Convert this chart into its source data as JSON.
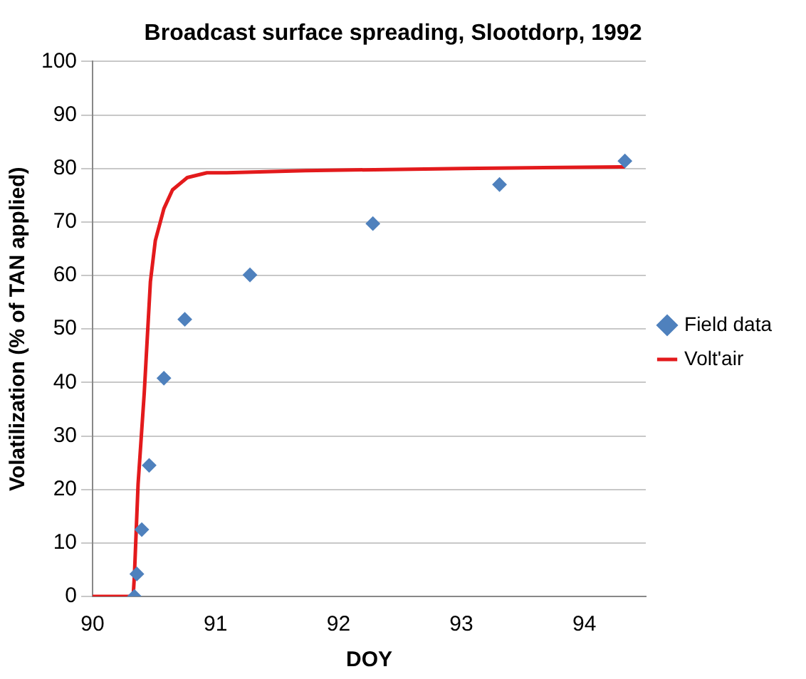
{
  "chart_data": {
    "type": "scatter",
    "title": "Broadcast surface spreading, Slootdorp, 1992",
    "xlabel": "DOY",
    "ylabel": "Volatilization (% of TAN applied)",
    "xlim": [
      90,
      94.5
    ],
    "xticks": [
      90,
      91,
      92,
      93,
      94
    ],
    "ylim": [
      0,
      100
    ],
    "yticks": [
      0,
      10,
      20,
      30,
      40,
      50,
      60,
      70,
      80,
      90,
      100
    ],
    "grid": "y",
    "legend": "right",
    "series": [
      {
        "name": "Field data",
        "marker": "diamond",
        "color": "#4f81bd",
        "x": [
          90.34,
          90.36,
          90.4,
          90.46,
          90.58,
          90.75,
          91.28,
          92.28,
          93.31,
          94.33
        ],
        "values": [
          0,
          4.2,
          12.5,
          24.5,
          40.8,
          51.8,
          60.1,
          69.7,
          77,
          81.4
        ]
      },
      {
        "name": "Volt'air",
        "type": "line",
        "marker": "none",
        "line_style": "solid",
        "color": "#e31a1c",
        "x": [
          90,
          90.33,
          90.34,
          90.37,
          90.42,
          90.47,
          90.51,
          90.58,
          90.65,
          90.77,
          90.93,
          91.09,
          91.73,
          93.01,
          94.29,
          94.33
        ],
        "values": [
          0,
          0,
          3.9,
          21,
          38,
          58.8,
          66.5,
          72.5,
          76,
          78.3,
          79.2,
          79.2,
          79.6,
          80,
          80.3,
          80.3
        ]
      }
    ]
  }
}
